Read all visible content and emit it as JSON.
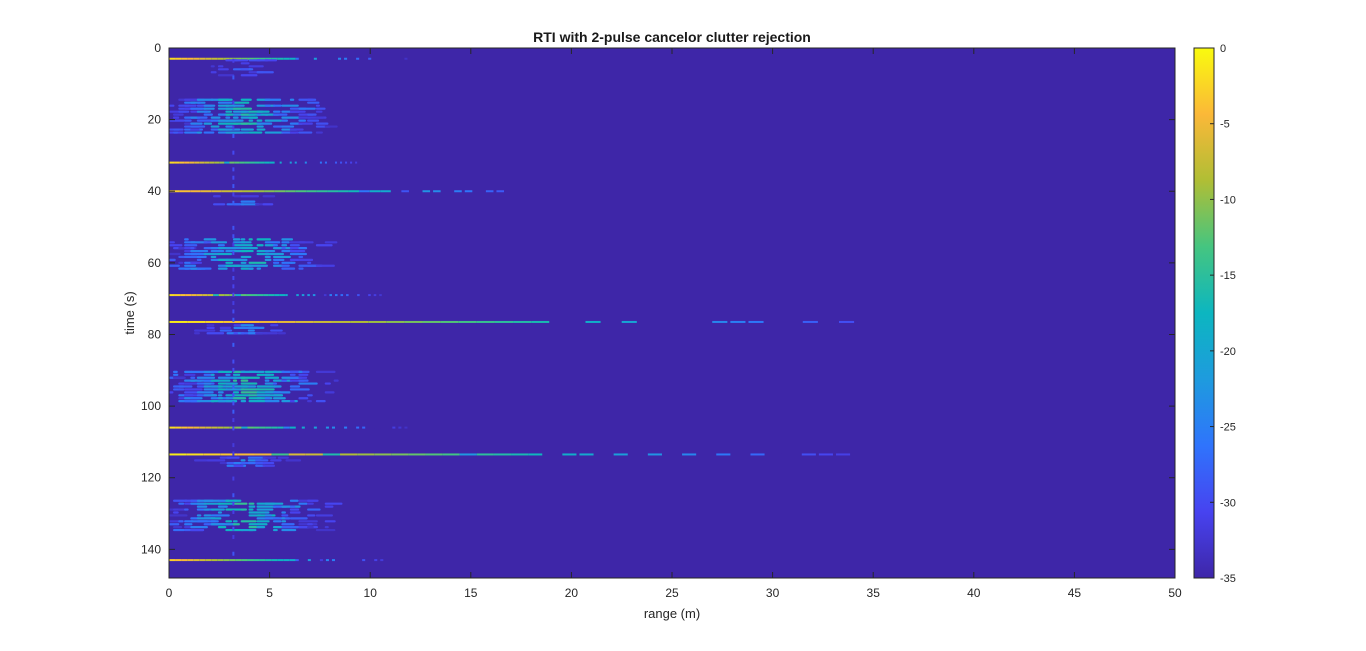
{
  "chart_data": {
    "type": "heatmap",
    "title": "RTI with 2-pulse cancelor clutter rejection",
    "xlabel": "range (m)",
    "ylabel": "time (s)",
    "xlim": [
      0,
      50
    ],
    "ylim": [
      0,
      148
    ],
    "y_reversed": true,
    "x_ticks": [
      0,
      5,
      10,
      15,
      20,
      25,
      30,
      35,
      40,
      45,
      50
    ],
    "y_ticks": [
      0,
      20,
      40,
      60,
      80,
      100,
      120,
      140
    ],
    "colorbar": {
      "clim": [
        -35,
        0
      ],
      "ticks": [
        0,
        -5,
        -10,
        -15,
        -20,
        -25,
        -30,
        -35
      ],
      "colormap": "parula"
    },
    "background_value": -35,
    "features": [
      {
        "kind": "line",
        "time": 3,
        "range_end": 12,
        "peak": -2
      },
      {
        "kind": "cluster",
        "time_start": 3,
        "time_end": 8,
        "range_end": 10,
        "peak": -24
      },
      {
        "kind": "cluster",
        "time_start": 14,
        "time_end": 24,
        "range_end": 10,
        "peak": -14
      },
      {
        "kind": "line",
        "time": 32,
        "range_end": 10,
        "peak": -2
      },
      {
        "kind": "line",
        "time": 40,
        "range_end": 21,
        "peak": -3
      },
      {
        "kind": "cluster",
        "time_start": 41,
        "time_end": 44,
        "range_end": 9,
        "peak": -24
      },
      {
        "kind": "cluster",
        "time_start": 53,
        "time_end": 62,
        "range_end": 10,
        "peak": -14
      },
      {
        "kind": "line",
        "time": 69,
        "range_end": 11,
        "peak": -2
      },
      {
        "kind": "line",
        "time": 76.5,
        "range_end": 36,
        "peak": -1
      },
      {
        "kind": "cluster",
        "time_start": 77,
        "time_end": 80,
        "range_end": 9,
        "peak": -22
      },
      {
        "kind": "cluster",
        "time_start": 90,
        "time_end": 99,
        "range_end": 10,
        "peak": -13
      },
      {
        "kind": "line",
        "time": 106,
        "range_end": 12,
        "peak": -2
      },
      {
        "kind": "line",
        "time": 113.5,
        "range_end": 34,
        "peak": -1
      },
      {
        "kind": "cluster",
        "time_start": 114,
        "time_end": 117,
        "range_end": 9,
        "peak": -22
      },
      {
        "kind": "cluster",
        "time_start": 126,
        "time_end": 135,
        "range_end": 10,
        "peak": -13
      },
      {
        "kind": "line",
        "time": 143,
        "range_end": 12,
        "peak": -3
      },
      {
        "kind": "vertical_streak",
        "range": 3.2,
        "time_start": 3,
        "time_end": 143,
        "peak": -28
      }
    ]
  }
}
